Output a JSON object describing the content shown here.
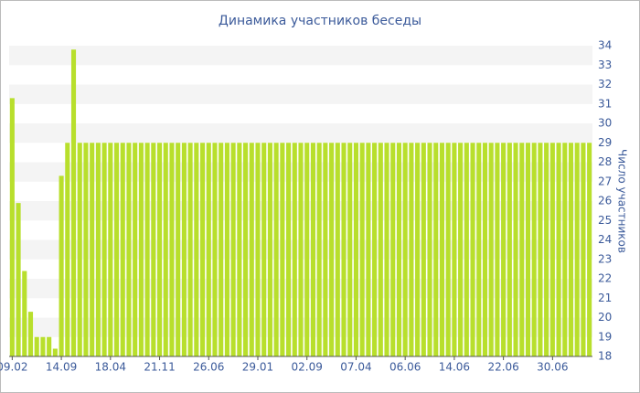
{
  "chart_data": {
    "type": "bar",
    "title": "Динамика участников беседы",
    "y_label": "Число участников",
    "categories": [
      "09.02",
      null,
      null,
      null,
      null,
      null,
      null,
      null,
      "14.09",
      null,
      null,
      null,
      null,
      null,
      null,
      null,
      "18.04",
      null,
      null,
      null,
      null,
      null,
      null,
      null,
      "21.11",
      null,
      null,
      null,
      null,
      null,
      null,
      null,
      "26.06",
      null,
      null,
      null,
      null,
      null,
      null,
      null,
      "29.01",
      null,
      null,
      null,
      null,
      null,
      null,
      null,
      "02.09",
      null,
      null,
      null,
      null,
      null,
      null,
      null,
      "07.04",
      null,
      null,
      null,
      null,
      null,
      null,
      null,
      "06.06",
      null,
      null,
      null,
      null,
      null,
      null,
      null,
      "14.06",
      null,
      null,
      null,
      null,
      null,
      null,
      null,
      "22.06",
      null,
      null,
      null,
      null,
      null,
      null,
      null,
      "30.06",
      null,
      null,
      null,
      null,
      null,
      null
    ],
    "values": [
      31.3,
      25.9,
      22.4,
      20.3,
      19,
      19,
      19,
      18.4,
      27.3,
      29,
      33.8,
      29,
      29,
      29,
      29,
      29,
      29,
      29,
      29,
      29,
      29,
      29,
      29,
      29,
      29,
      29,
      29,
      29,
      29,
      29,
      29,
      29,
      29,
      29,
      29,
      29,
      29,
      29,
      29,
      29,
      29,
      29,
      29,
      29,
      29,
      29,
      29,
      29,
      29,
      29,
      29,
      29,
      29,
      29,
      29,
      29,
      29,
      29,
      29,
      29,
      29,
      29,
      29,
      29,
      29,
      29,
      29,
      29,
      29,
      29,
      29,
      29,
      29,
      29,
      29,
      29,
      29,
      29,
      29,
      29,
      29,
      29,
      29,
      29,
      29,
      29,
      29,
      29,
      29,
      29,
      29,
      29,
      29,
      29,
      29
    ],
    "color": "#b8df2c",
    "ylim": [
      18,
      34
    ],
    "yticks": [
      18,
      19,
      20,
      21,
      22,
      23,
      24,
      25,
      26,
      27,
      28,
      29,
      30,
      31,
      32,
      33,
      34
    ],
    "y_axis_side": "right",
    "grid": "bands"
  }
}
